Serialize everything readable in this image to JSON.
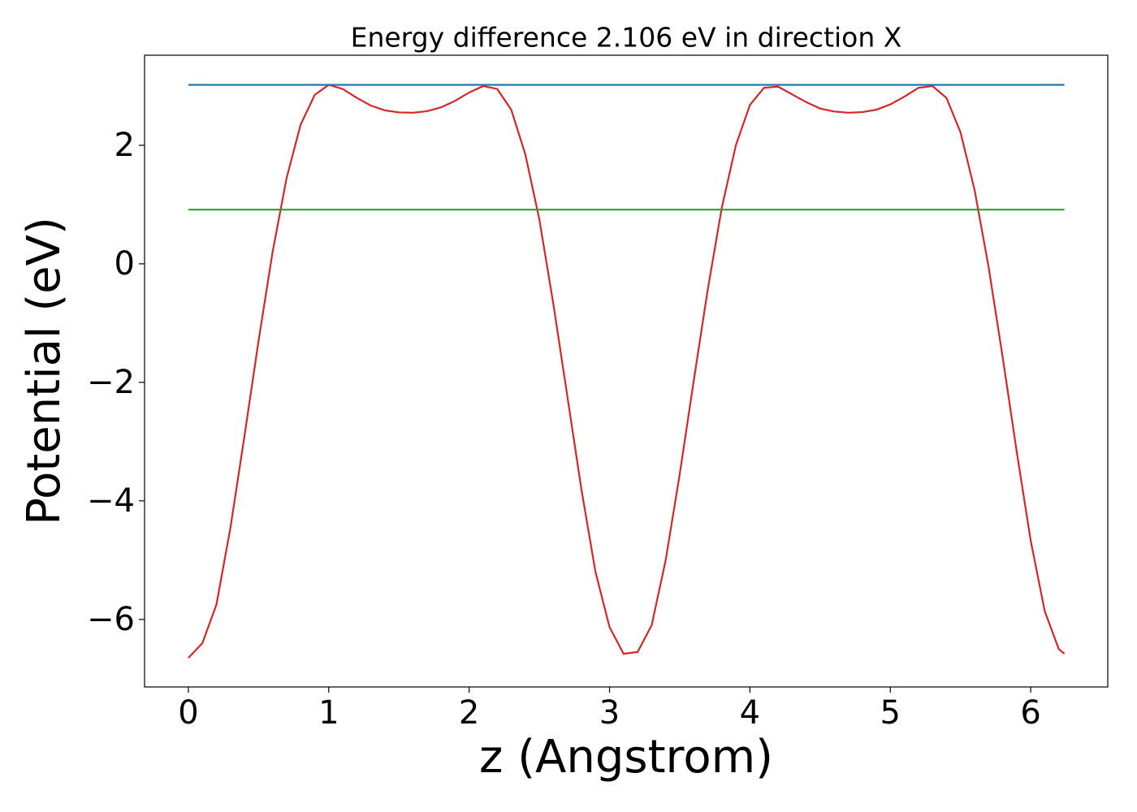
{
  "chart_data": {
    "type": "line",
    "title": "Energy difference 2.106 eV in direction X",
    "xlabel": "z (Angstrom)",
    "ylabel": "Potential (eV)",
    "xlim": [
      -0.312,
      6.549
    ],
    "ylim": [
      -7.14,
      3.52
    ],
    "xticks": [
      0,
      1,
      2,
      3,
      4,
      5,
      6
    ],
    "yticks": [
      {
        "value": -6,
        "label": "−6"
      },
      {
        "value": -4,
        "label": "−4"
      },
      {
        "value": -2,
        "label": "−2"
      },
      0,
      2
    ],
    "series": [
      {
        "color": "#d62728",
        "x": [
          0,
          0.1,
          0.2,
          0.3,
          0.4,
          0.5,
          0.6,
          0.7,
          0.8,
          0.9,
          1.0,
          1.1,
          1.2,
          1.3,
          1.4,
          1.5,
          1.6,
          1.7,
          1.8,
          1.9,
          2.0,
          2.1,
          2.2,
          2.3,
          2.4,
          2.5,
          2.6,
          2.7,
          2.8,
          2.9,
          3.0,
          3.1,
          3.2,
          3.3,
          3.4,
          3.5,
          3.6,
          3.7,
          3.8,
          3.9,
          4.0,
          4.1,
          4.2,
          4.3,
          4.4,
          4.5,
          4.6,
          4.7,
          4.8,
          4.9,
          5.0,
          5.1,
          5.2,
          5.3,
          5.4,
          5.5,
          5.6,
          5.7,
          5.8,
          5.9,
          6.0,
          6.1,
          6.2,
          6.24
        ],
        "values": [
          -6.65,
          -6.4,
          -5.75,
          -4.45,
          -2.9,
          -1.3,
          0.2,
          1.45,
          2.35,
          2.85,
          3.02,
          2.95,
          2.8,
          2.67,
          2.59,
          2.555,
          2.55,
          2.575,
          2.64,
          2.75,
          2.89,
          3.0,
          2.95,
          2.6,
          1.85,
          0.75,
          -0.68,
          -2.24,
          -3.81,
          -5.2,
          -6.13,
          -6.58,
          -6.55,
          -6.1,
          -5.0,
          -3.55,
          -1.97,
          -0.43,
          0.95,
          2.0,
          2.68,
          2.97,
          2.99,
          2.86,
          2.73,
          2.62,
          2.57,
          2.55,
          2.56,
          2.6,
          2.69,
          2.82,
          2.97,
          3.0,
          2.8,
          2.22,
          1.25,
          -0.05,
          -1.57,
          -3.16,
          -4.67,
          -5.86,
          -6.5,
          -6.58
        ]
      },
      {
        "color": "#1f77b4",
        "x": [
          0,
          6.24
        ],
        "values": [
          3.02,
          3.02
        ]
      },
      {
        "color": "#2ca02c",
        "x": [
          0,
          6.24
        ],
        "values": [
          0.914,
          0.914
        ]
      }
    ]
  }
}
